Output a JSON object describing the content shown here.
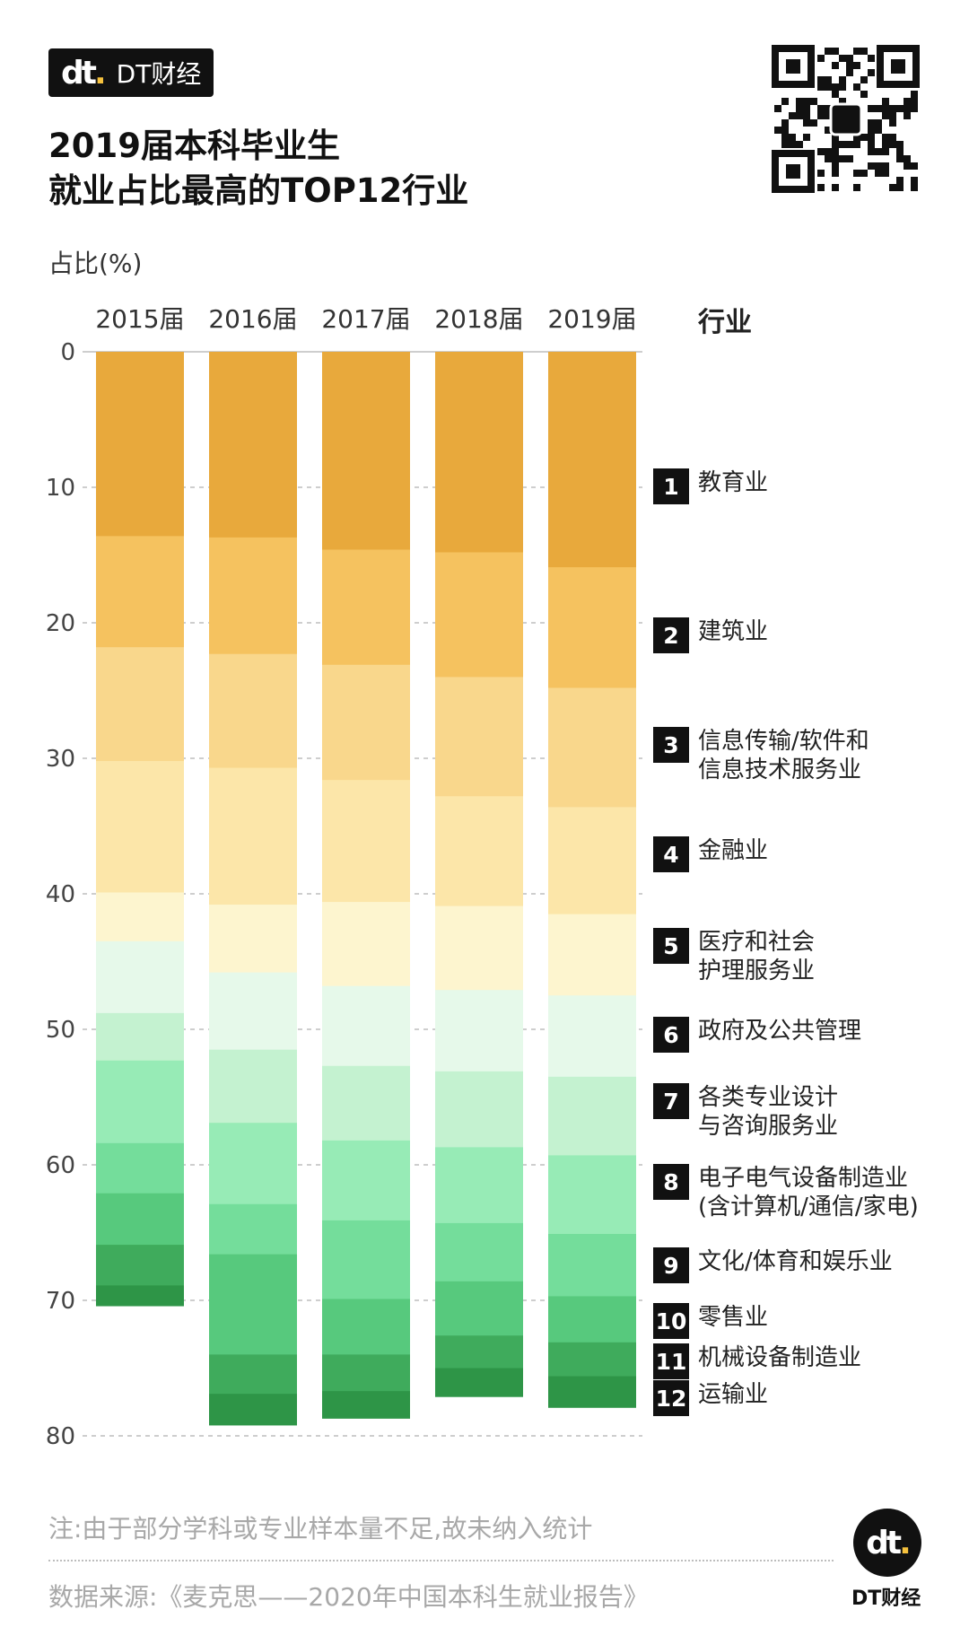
{
  "brand": {
    "mark": "dt",
    "name": "DT财经"
  },
  "title_line1": "2019届本科毕业生",
  "title_line2": "就业占比最高的TOP12行业",
  "unit_label": "占比(%)",
  "legend_header": "行业",
  "legend": [
    {
      "num": "1",
      "label": "教育业"
    },
    {
      "num": "2",
      "label": "建筑业"
    },
    {
      "num": "3",
      "label": "信息传输/软件和\n信息技术服务业"
    },
    {
      "num": "4",
      "label": "金融业"
    },
    {
      "num": "5",
      "label": "医疗和社会\n护理服务业"
    },
    {
      "num": "6",
      "label": "政府及公共管理"
    },
    {
      "num": "7",
      "label": "各类专业设计\n与咨询服务业"
    },
    {
      "num": "8",
      "label": "电子电气设备制造业\n(含计算机/通信/家电)"
    },
    {
      "num": "9",
      "label": "文化/体育和娱乐业"
    },
    {
      "num": "10",
      "label": "零售业"
    },
    {
      "num": "11",
      "label": "机械设备制造业"
    },
    {
      "num": "12",
      "label": "运输业"
    }
  ],
  "note": "注:由于部分学科或专业样本量不足,故未纳入统计",
  "source": "数据来源:《麦克思——2020年中国本科生就业报告》",
  "footer_logo": {
    "mark": "dt",
    "name": "DT财经"
  },
  "colors": [
    "#e8a93c",
    "#f5c25f",
    "#f9d78c",
    "#fce6a9",
    "#fdf5cf",
    "#e6f9ea",
    "#c4f2d0",
    "#97ebb6",
    "#74dd9b",
    "#57c97d",
    "#3fab5c",
    "#2e9547"
  ],
  "chart_data": {
    "type": "bar",
    "stacked": true,
    "orientation": "vertical-inverted",
    "title": "2019届本科毕业生就业占比最高的TOP12行业",
    "ylabel": "占比(%)",
    "ylim": [
      0,
      80
    ],
    "yticks": [
      0,
      10,
      20,
      30,
      40,
      50,
      60,
      70,
      80
    ],
    "grid": true,
    "categories": [
      "2015届",
      "2016届",
      "2017届",
      "2018届",
      "2019届"
    ],
    "series": [
      {
        "name": "教育业",
        "values": [
          13.6,
          13.7,
          14.6,
          14.8,
          15.9
        ]
      },
      {
        "name": "建筑业",
        "values": [
          8.2,
          8.6,
          8.5,
          9.2,
          8.9
        ]
      },
      {
        "name": "信息传输/软件和信息技术服务业",
        "values": [
          8.4,
          8.4,
          8.5,
          8.8,
          8.8
        ]
      },
      {
        "name": "金融业",
        "values": [
          9.7,
          10.1,
          9.0,
          8.1,
          7.9
        ]
      },
      {
        "name": "医疗和社会护理服务业",
        "values": [
          3.6,
          5.0,
          6.2,
          6.2,
          6.0
        ]
      },
      {
        "name": "政府及公共管理",
        "values": [
          5.3,
          5.7,
          5.9,
          6.0,
          6.0
        ]
      },
      {
        "name": "各类专业设计与咨询服务业",
        "values": [
          3.5,
          5.4,
          5.5,
          5.6,
          5.8
        ]
      },
      {
        "name": "电子电气设备制造业(含计算机/通信/家电)",
        "values": [
          6.1,
          6.0,
          5.9,
          5.6,
          5.8
        ]
      },
      {
        "name": "文化/体育和娱乐业",
        "values": [
          3.7,
          3.7,
          5.8,
          4.3,
          4.6
        ]
      },
      {
        "name": "零售业",
        "values": [
          3.8,
          7.4,
          4.1,
          4.0,
          3.4
        ]
      },
      {
        "name": "机械设备制造业",
        "values": [
          3.0,
          2.9,
          2.7,
          2.4,
          2.5
        ]
      },
      {
        "name": "运输业",
        "values": [
          1.5,
          2.3,
          2.0,
          2.1,
          2.3
        ]
      }
    ]
  }
}
